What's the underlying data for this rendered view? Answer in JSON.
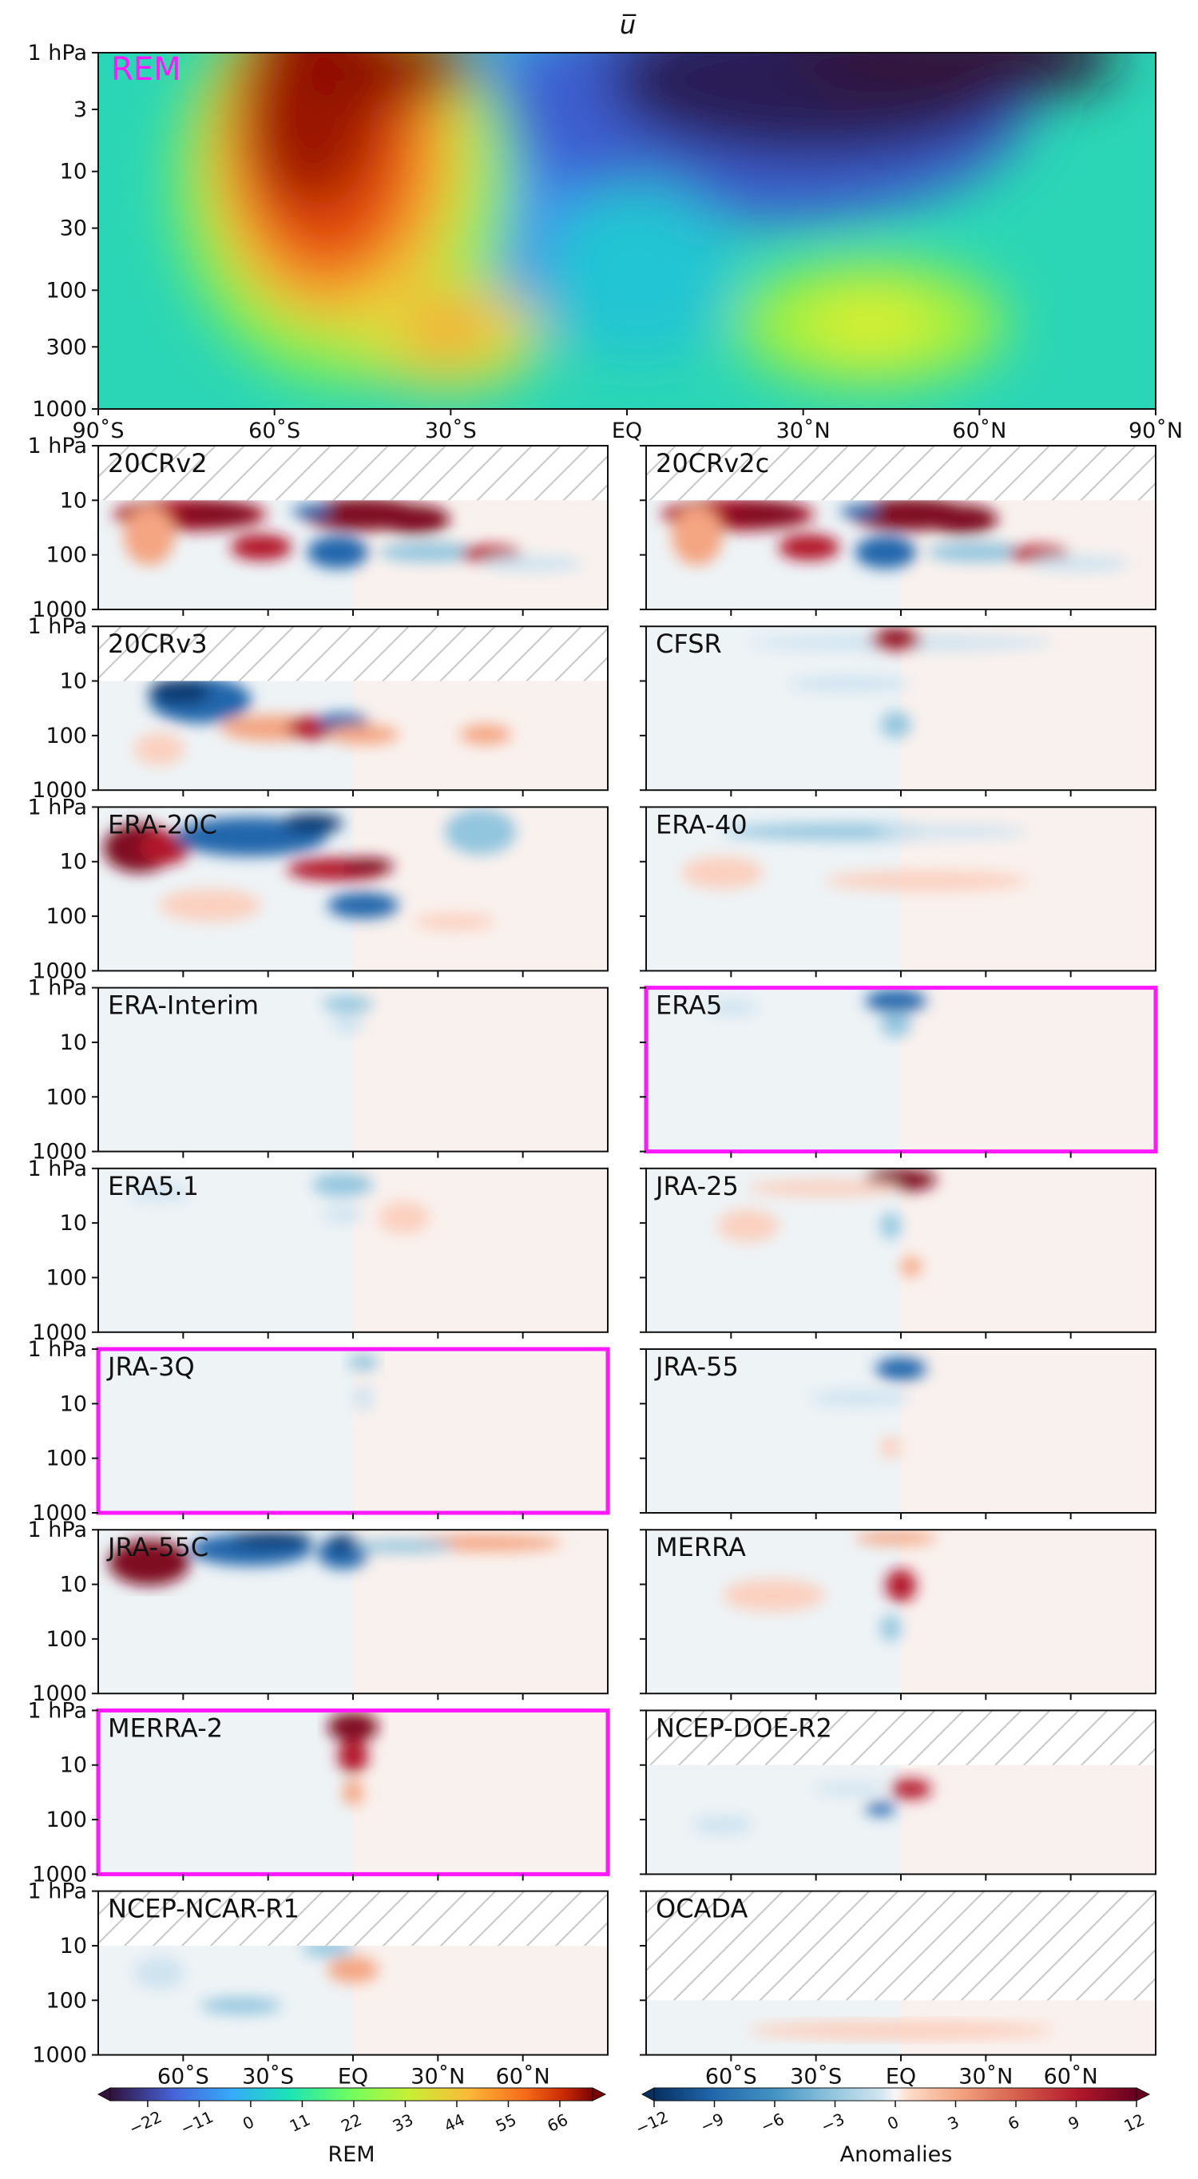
{
  "chart_data": {
    "type": "heatmap",
    "title": "u̅",
    "main_panel": {
      "label": "REM",
      "y_ticks": [
        "1 hPa",
        "3",
        "10",
        "30",
        "100",
        "300",
        "1000"
      ],
      "x_ticks": [
        "90˚S",
        "60˚S",
        "30˚S",
        "EQ",
        "30˚N",
        "60˚N",
        "90˚N"
      ]
    },
    "panel_y_ticks": [
      "1 hPa",
      "10",
      "100",
      "1000"
    ],
    "panel_x_ticks": [
      "60˚S",
      "30˚S",
      "EQ",
      "30˚N",
      "60˚N"
    ],
    "panels": [
      {
        "name": "20CRv2",
        "top_hPa": 10,
        "highlight": false
      },
      {
        "name": "20CRv2c",
        "top_hPa": 10,
        "highlight": false
      },
      {
        "name": "20CRv3",
        "top_hPa": 10,
        "highlight": false
      },
      {
        "name": "CFSR",
        "top_hPa": 1,
        "highlight": false
      },
      {
        "name": "ERA-20C",
        "top_hPa": 1,
        "highlight": false
      },
      {
        "name": "ERA-40",
        "top_hPa": 1,
        "highlight": false
      },
      {
        "name": "ERA-Interim",
        "top_hPa": 1,
        "highlight": false
      },
      {
        "name": "ERA5",
        "top_hPa": 1,
        "highlight": true
      },
      {
        "name": "ERA5.1",
        "top_hPa": 1,
        "highlight": false
      },
      {
        "name": "JRA-25",
        "top_hPa": 1,
        "highlight": false
      },
      {
        "name": "JRA-3Q",
        "top_hPa": 1,
        "highlight": true
      },
      {
        "name": "JRA-55",
        "top_hPa": 1,
        "highlight": false
      },
      {
        "name": "JRA-55C",
        "top_hPa": 1,
        "highlight": false
      },
      {
        "name": "MERRA",
        "top_hPa": 1,
        "highlight": false
      },
      {
        "name": "MERRA-2",
        "top_hPa": 1,
        "highlight": true
      },
      {
        "name": "NCEP-DOE-R2",
        "top_hPa": 10,
        "highlight": false
      },
      {
        "name": "NCEP-NCAR-R1",
        "top_hPa": 10,
        "highlight": false
      },
      {
        "name": "OCADA",
        "top_hPa": 100,
        "highlight": false
      }
    ],
    "colorbar_rem": {
      "label": "REM",
      "ticks": [
        "−22",
        "−11",
        "0",
        "11",
        "22",
        "33",
        "44",
        "55",
        "66"
      ],
      "range": [
        -30,
        73
      ]
    },
    "colorbar_anom": {
      "label": "Anomalies",
      "ticks": [
        "−12",
        "−9",
        "−6",
        "−3",
        "0",
        "3",
        "6",
        "9",
        "12"
      ],
      "range": [
        -12,
        12
      ]
    }
  },
  "colors": {
    "highlight": "#ff19ff",
    "rem_label": "#ff19ff",
    "hatch": "#c8c8c8"
  }
}
